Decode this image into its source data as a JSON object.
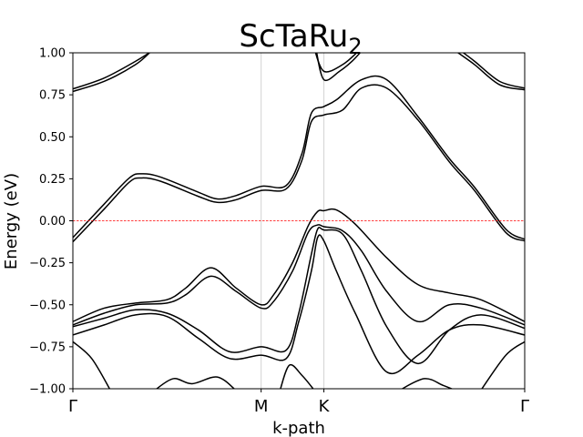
{
  "chart_data": {
    "type": "line",
    "title": "ScTaRu",
    "title_subscript": "2",
    "xlabel": "k-path",
    "ylabel": "Energy (eV)",
    "ylim": [
      -1.0,
      1.0
    ],
    "xlim": [
      0,
      7.2
    ],
    "yticks": [
      -1.0,
      -0.75,
      -0.5,
      -0.25,
      0.0,
      0.25,
      0.5,
      0.75,
      1.0
    ],
    "ytick_labels": [
      "−1.00",
      "−0.75",
      "−0.50",
      "−0.25",
      "0.00",
      "0.25",
      "0.50",
      "0.75",
      "1.00"
    ],
    "xticks": [
      {
        "label": "Γ",
        "x": 0
      },
      {
        "label": "M",
        "x": 3
      },
      {
        "label": "K",
        "x": 4
      },
      {
        "label": "Γ",
        "x": 7.2
      }
    ],
    "vlines_at": [
      3,
      4
    ],
    "fermi_level": 0.0,
    "fermi_color": "#ff0000",
    "vline_color": "#d3d3d3",
    "band_color": "#000000",
    "series": [
      {
        "points": [
          [
            0,
            0.785
          ],
          [
            0.5,
            0.85
          ],
          [
            1.0,
            0.95
          ],
          [
            1.3,
            1.02
          ]
        ]
      },
      {
        "points": [
          [
            0,
            0.77
          ],
          [
            0.5,
            0.83
          ],
          [
            1.0,
            0.93
          ],
          [
            1.25,
            1.01
          ]
        ]
      },
      {
        "points": [
          [
            0,
            -0.1
          ],
          [
            0.5,
            0.1
          ],
          [
            0.9,
            0.255
          ],
          [
            1.1,
            0.28
          ],
          [
            1.4,
            0.26
          ],
          [
            2.0,
            0.17
          ],
          [
            2.3,
            0.13
          ],
          [
            2.6,
            0.15
          ],
          [
            3.0,
            0.205
          ],
          [
            3.4,
            0.21
          ],
          [
            3.65,
            0.4
          ],
          [
            3.8,
            0.64
          ],
          [
            4.0,
            0.68
          ],
          [
            4.2,
            0.72
          ],
          [
            4.6,
            0.84
          ],
          [
            5.0,
            0.84
          ],
          [
            5.5,
            0.62
          ],
          [
            6.0,
            0.37
          ],
          [
            6.4,
            0.2
          ],
          [
            6.9,
            -0.05
          ],
          [
            7.2,
            -0.11
          ]
        ]
      },
      {
        "points": [
          [
            0,
            -0.125
          ],
          [
            0.5,
            0.07
          ],
          [
            0.9,
            0.23
          ],
          [
            1.1,
            0.255
          ],
          [
            1.4,
            0.235
          ],
          [
            2.0,
            0.145
          ],
          [
            2.3,
            0.11
          ],
          [
            2.6,
            0.125
          ],
          [
            3.0,
            0.18
          ],
          [
            3.4,
            0.19
          ],
          [
            3.65,
            0.36
          ],
          [
            3.8,
            0.59
          ],
          [
            4.0,
            0.63
          ],
          [
            4.3,
            0.66
          ],
          [
            4.6,
            0.79
          ],
          [
            5.0,
            0.79
          ],
          [
            5.5,
            0.6
          ],
          [
            6.0,
            0.35
          ],
          [
            6.4,
            0.18
          ],
          [
            6.9,
            -0.07
          ],
          [
            7.2,
            -0.12
          ]
        ]
      },
      {
        "points": [
          [
            3.85,
            1.02
          ],
          [
            4.0,
            0.89
          ],
          [
            4.3,
            0.93
          ],
          [
            4.55,
            1.01
          ]
        ]
      },
      {
        "points": [
          [
            3.88,
            1.01
          ],
          [
            4.0,
            0.84
          ],
          [
            4.25,
            0.89
          ],
          [
            4.45,
            0.95
          ],
          [
            4.6,
            1.01
          ]
        ]
      },
      {
        "points": [
          [
            6.15,
            1.02
          ],
          [
            6.4,
            0.95
          ],
          [
            6.8,
            0.83
          ],
          [
            7.2,
            0.79
          ]
        ]
      },
      {
        "points": [
          [
            6.1,
            1.01
          ],
          [
            6.4,
            0.93
          ],
          [
            6.8,
            0.81
          ],
          [
            7.2,
            0.78
          ]
        ]
      },
      {
        "points": [
          [
            0,
            -0.6
          ],
          [
            0.5,
            -0.52
          ],
          [
            1.0,
            -0.49
          ],
          [
            1.5,
            -0.47
          ],
          [
            1.8,
            -0.4
          ],
          [
            2.2,
            -0.28
          ],
          [
            2.6,
            -0.4
          ],
          [
            3.0,
            -0.5
          ],
          [
            3.2,
            -0.44
          ],
          [
            3.5,
            -0.25
          ],
          [
            3.75,
            -0.03
          ],
          [
            3.9,
            0.055
          ],
          [
            4.0,
            0.06
          ],
          [
            4.2,
            0.065
          ],
          [
            4.5,
            -0.02
          ],
          [
            5.0,
            -0.22
          ],
          [
            5.5,
            -0.38
          ],
          [
            6.0,
            -0.43
          ],
          [
            6.5,
            -0.47
          ],
          [
            7.2,
            -0.6
          ]
        ]
      },
      {
        "points": [
          [
            0,
            -0.62
          ],
          [
            0.5,
            -0.55
          ],
          [
            1.0,
            -0.5
          ],
          [
            1.5,
            -0.49
          ],
          [
            1.8,
            -0.44
          ],
          [
            2.2,
            -0.33
          ],
          [
            2.6,
            -0.42
          ],
          [
            3.0,
            -0.52
          ],
          [
            3.2,
            -0.48
          ],
          [
            3.5,
            -0.3
          ],
          [
            3.75,
            -0.07
          ],
          [
            3.9,
            -0.025
          ],
          [
            4.0,
            -0.035
          ],
          [
            4.3,
            -0.06
          ],
          [
            4.6,
            -0.18
          ],
          [
            5.0,
            -0.42
          ],
          [
            5.5,
            -0.6
          ],
          [
            6.0,
            -0.5
          ],
          [
            6.5,
            -0.52
          ],
          [
            7.2,
            -0.62
          ]
        ]
      },
      {
        "points": [
          [
            0,
            -0.63
          ],
          [
            0.5,
            -0.58
          ],
          [
            1.0,
            -0.53
          ],
          [
            1.5,
            -0.55
          ],
          [
            2.0,
            -0.65
          ],
          [
            2.5,
            -0.78
          ],
          [
            3.0,
            -0.75
          ],
          [
            3.4,
            -0.77
          ],
          [
            3.6,
            -0.55
          ],
          [
            3.8,
            -0.2
          ],
          [
            3.9,
            -0.05
          ],
          [
            4.0,
            -0.055
          ],
          [
            4.3,
            -0.08
          ],
          [
            4.6,
            -0.3
          ],
          [
            5.0,
            -0.63
          ],
          [
            5.5,
            -0.85
          ],
          [
            6.0,
            -0.65
          ],
          [
            6.5,
            -0.56
          ],
          [
            7.2,
            -0.64
          ]
        ]
      },
      {
        "points": [
          [
            0,
            -0.68
          ],
          [
            0.5,
            -0.62
          ],
          [
            1.0,
            -0.56
          ],
          [
            1.5,
            -0.57
          ],
          [
            2.0,
            -0.7
          ],
          [
            2.5,
            -0.82
          ],
          [
            3.0,
            -0.8
          ],
          [
            3.4,
            -0.82
          ],
          [
            3.6,
            -0.6
          ],
          [
            3.8,
            -0.3
          ],
          [
            3.9,
            -0.1
          ],
          [
            4.0,
            -0.12
          ],
          [
            4.2,
            -0.3
          ],
          [
            4.5,
            -0.55
          ],
          [
            5.0,
            -0.9
          ],
          [
            5.5,
            -0.8
          ],
          [
            6.0,
            -0.65
          ],
          [
            6.5,
            -0.62
          ],
          [
            7.2,
            -0.68
          ]
        ]
      },
      {
        "points": [
          [
            0,
            -0.72
          ],
          [
            0.3,
            -0.82
          ],
          [
            0.6,
            -1.01
          ]
        ]
      },
      {
        "points": [
          [
            7.2,
            -0.72
          ],
          [
            6.9,
            -0.8
          ],
          [
            6.5,
            -1.01
          ]
        ]
      },
      {
        "points": [
          [
            1.3,
            -1.01
          ],
          [
            1.6,
            -0.94
          ],
          [
            1.9,
            -0.97
          ],
          [
            2.3,
            -0.93
          ],
          [
            2.6,
            -1.01
          ]
        ]
      },
      {
        "points": [
          [
            3.3,
            -1.01
          ],
          [
            3.45,
            -0.86
          ],
          [
            3.65,
            -0.92
          ],
          [
            3.85,
            -1.01
          ]
        ]
      },
      {
        "points": [
          [
            5.2,
            -1.01
          ],
          [
            5.6,
            -0.94
          ],
          [
            5.9,
            -0.98
          ],
          [
            6.1,
            -1.01
          ]
        ]
      }
    ]
  }
}
